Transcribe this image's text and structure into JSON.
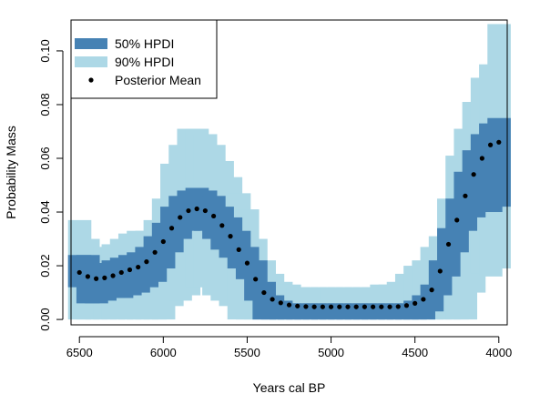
{
  "chart_data": {
    "type": "area",
    "xlabel": "Years cal BP",
    "ylabel": "Probability Mass",
    "x_reversed": true,
    "xlim": [
      6550,
      3950
    ],
    "ylim": [
      -0.002,
      0.1115
    ],
    "x_ticks": [
      6500,
      6000,
      5500,
      5000,
      4500,
      4000
    ],
    "x_tick_labels": [
      "6500",
      "6000",
      "5500",
      "5000",
      "4500",
      "4000"
    ],
    "y_ticks": [
      0,
      0.02,
      0.04,
      0.06,
      0.08,
      0.1
    ],
    "y_tick_labels": [
      "0.00",
      "0.02",
      "0.04",
      "0.06",
      "0.08",
      "0.10"
    ],
    "grid": false,
    "legend_position": "top-left",
    "colors": {
      "hpdi50": "#4682b4",
      "hpdi90": "#add8e6",
      "mean": "#000000"
    },
    "legend": [
      {
        "label": "50% HPDI",
        "kind": "band50"
      },
      {
        "label": "90% HPDI",
        "kind": "band90"
      },
      {
        "label": "Posterior Mean",
        "kind": "point"
      }
    ],
    "x": [
      6500,
      6450,
      6400,
      6350,
      6300,
      6250,
      6200,
      6150,
      6100,
      6050,
      6000,
      5950,
      5900,
      5850,
      5800,
      5750,
      5700,
      5650,
      5600,
      5550,
      5500,
      5450,
      5400,
      5350,
      5300,
      5250,
      5200,
      5150,
      5100,
      5050,
      5000,
      4950,
      4900,
      4850,
      4800,
      4750,
      4700,
      4650,
      4600,
      4550,
      4500,
      4450,
      4400,
      4350,
      4300,
      4250,
      4200,
      4150,
      4100,
      4050,
      4000
    ],
    "series": [
      {
        "name": "Posterior Mean",
        "values": [
          0.0175,
          0.016,
          0.0152,
          0.0155,
          0.0163,
          0.0175,
          0.0185,
          0.0195,
          0.0215,
          0.025,
          0.029,
          0.034,
          0.038,
          0.0405,
          0.0412,
          0.0405,
          0.0385,
          0.035,
          0.031,
          0.026,
          0.021,
          0.015,
          0.01,
          0.0075,
          0.0062,
          0.0054,
          0.005,
          0.0048,
          0.0047,
          0.0047,
          0.0047,
          0.0047,
          0.0047,
          0.0047,
          0.0047,
          0.0047,
          0.0047,
          0.0047,
          0.0048,
          0.0052,
          0.006,
          0.0075,
          0.011,
          0.018,
          0.028,
          0.037,
          0.046,
          0.054,
          0.06,
          0.065,
          0.066
        ]
      },
      {
        "name": "50% HPDI",
        "lower": [
          0.012,
          0.006,
          0.006,
          0.007,
          0.008,
          0.008,
          0.009,
          0.01,
          0.012,
          0.014,
          0.019,
          0.025,
          0.03,
          0.033,
          0.034,
          0.033,
          0.03,
          0.026,
          0.023,
          0.019,
          0.015,
          0.007,
          0.0,
          0.0,
          0.0,
          0.0,
          0.0,
          0.0,
          0.0,
          0.0,
          0.0,
          0.0,
          0.0,
          0.0,
          0.0,
          0.0,
          0.0,
          0.0,
          0.0,
          0.0,
          0.0,
          0.0,
          0.003,
          0.009,
          0.016,
          0.025,
          0.033,
          0.038,
          0.042,
          0.04,
          0.042
        ],
        "upper": [
          0.024,
          0.024,
          0.021,
          0.021,
          0.022,
          0.023,
          0.024,
          0.025,
          0.027,
          0.031,
          0.036,
          0.042,
          0.046,
          0.048,
          0.049,
          0.048,
          0.046,
          0.042,
          0.038,
          0.033,
          0.027,
          0.022,
          0.014,
          0.009,
          0.007,
          0.006,
          0.006,
          0.006,
          0.006,
          0.006,
          0.006,
          0.006,
          0.006,
          0.006,
          0.006,
          0.006,
          0.006,
          0.006,
          0.006,
          0.006,
          0.007,
          0.009,
          0.013,
          0.022,
          0.034,
          0.045,
          0.055,
          0.063,
          0.069,
          0.073,
          0.075
        ]
      },
      {
        "name": "90% HPDI",
        "lower": [
          0.0,
          0.0,
          0.0,
          0.0,
          0.0,
          0.0,
          0.0,
          0.0,
          0.0,
          0.0,
          0.0,
          0.005,
          0.007,
          0.009,
          0.012,
          0.012,
          0.009,
          0.007,
          0.005,
          0.0,
          0.0,
          0.0,
          0.0,
          0.0,
          0.0,
          0.0,
          0.0,
          0.0,
          0.0,
          0.0,
          0.0,
          0.0,
          0.0,
          0.0,
          0.0,
          0.0,
          0.0,
          0.0,
          0.0,
          0.0,
          0.0,
          0.0,
          0.0,
          0.0,
          0.0,
          0.0,
          0.0,
          0.01,
          0.017,
          0.016,
          0.019
        ],
        "upper": [
          0.037,
          0.03,
          0.027,
          0.027,
          0.028,
          0.03,
          0.032,
          0.033,
          0.033,
          0.037,
          0.045,
          0.058,
          0.065,
          0.071,
          0.071,
          0.069,
          0.065,
          0.059,
          0.053,
          0.047,
          0.041,
          0.03,
          0.022,
          0.017,
          0.014,
          0.013,
          0.012,
          0.012,
          0.012,
          0.012,
          0.012,
          0.012,
          0.012,
          0.012,
          0.012,
          0.012,
          0.013,
          0.013,
          0.014,
          0.017,
          0.02,
          0.022,
          0.027,
          0.031,
          0.045,
          0.061,
          0.071,
          0.081,
          0.09,
          0.095,
          0.11
        ]
      }
    ]
  }
}
